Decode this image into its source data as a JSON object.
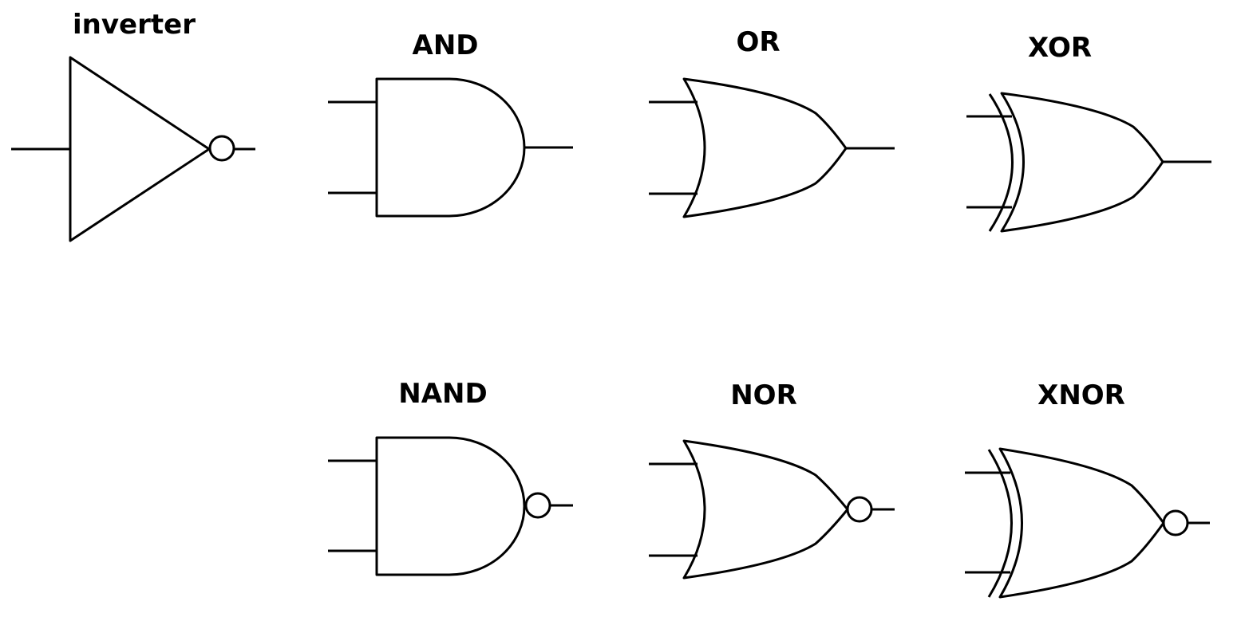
{
  "diagram": {
    "gates": [
      {
        "id": "inverter",
        "label": "inverter"
      },
      {
        "id": "and",
        "label": "AND"
      },
      {
        "id": "or",
        "label": "OR"
      },
      {
        "id": "xor",
        "label": "XOR"
      },
      {
        "id": "nand",
        "label": "NAND"
      },
      {
        "id": "nor",
        "label": "NOR"
      },
      {
        "id": "xnor",
        "label": "XNOR"
      }
    ]
  }
}
